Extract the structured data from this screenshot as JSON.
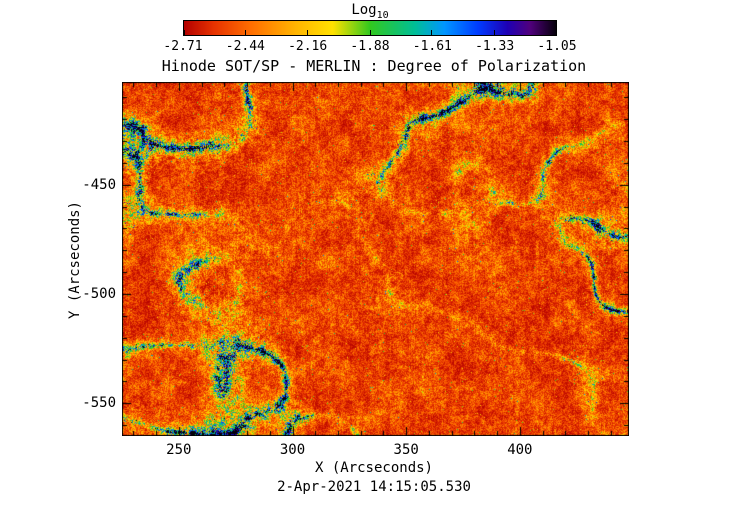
{
  "title": "Hinode SOT/SP - MERLIN : Degree of Polarization",
  "colorbar": {
    "label_base": "Log",
    "label_sub": "10",
    "tick_labels": [
      "-2.71",
      "-2.44",
      "-2.16",
      "-1.88",
      "-1.61",
      "-1.33",
      "-1.05"
    ]
  },
  "axes": {
    "xlabel": "X (Arcseconds)",
    "ylabel": "Y (Arcseconds)",
    "x_tick_labels": [
      "250",
      "300",
      "350",
      "400"
    ],
    "y_tick_labels": [
      "-450",
      "-500",
      "-550"
    ]
  },
  "footer": {
    "timestamp": "2-Apr-2021 14:15:05.530"
  },
  "chart_data": {
    "type": "heatmap",
    "title": "Hinode SOT/SP - MERLIN : Degree of Polarization",
    "xlabel": "X (Arcseconds)",
    "ylabel": "Y (Arcseconds)",
    "xlim": [
      225,
      448
    ],
    "ylim": [
      -565,
      -403
    ],
    "x_major_ticks": [
      250,
      300,
      350,
      400
    ],
    "y_major_ticks": [
      -450,
      -500,
      -550
    ],
    "major_tick_step": 50,
    "minor_tick_step": 10,
    "timestamp": "2-Apr-2021 14:15:05.530",
    "colorbar": {
      "label": "Log10",
      "scale": "log10",
      "range": [
        -2.71,
        -1.05
      ],
      "ticks": [
        -2.71,
        -2.44,
        -2.16,
        -1.88,
        -1.61,
        -1.33,
        -1.05
      ],
      "colormap": [
        {
          "t": 0.0,
          "c": "#b40000"
        },
        {
          "t": 0.08,
          "c": "#e63200"
        },
        {
          "t": 0.18,
          "c": "#ff6e00"
        },
        {
          "t": 0.3,
          "c": "#ffb400"
        },
        {
          "t": 0.4,
          "c": "#ffe100"
        },
        {
          "t": 0.5,
          "c": "#32c81e"
        },
        {
          "t": 0.62,
          "c": "#00be96"
        },
        {
          "t": 0.7,
          "c": "#0096ff"
        },
        {
          "t": 0.79,
          "c": "#003cff"
        },
        {
          "t": 0.87,
          "c": "#1e00b4"
        },
        {
          "t": 0.93,
          "c": "#50007d"
        },
        {
          "t": 1.0,
          "c": "#05000a"
        }
      ]
    },
    "description": "Quiet-Sun degree-of-polarization map: background near log10 ~ -2.5 (red/orange granular field) with magnetic network lanes and flux concentrations reaching log10 ~ -1.6 to -1.1 (green, cyan, blue, dark-purple cores).",
    "noise_seed": 7
  }
}
